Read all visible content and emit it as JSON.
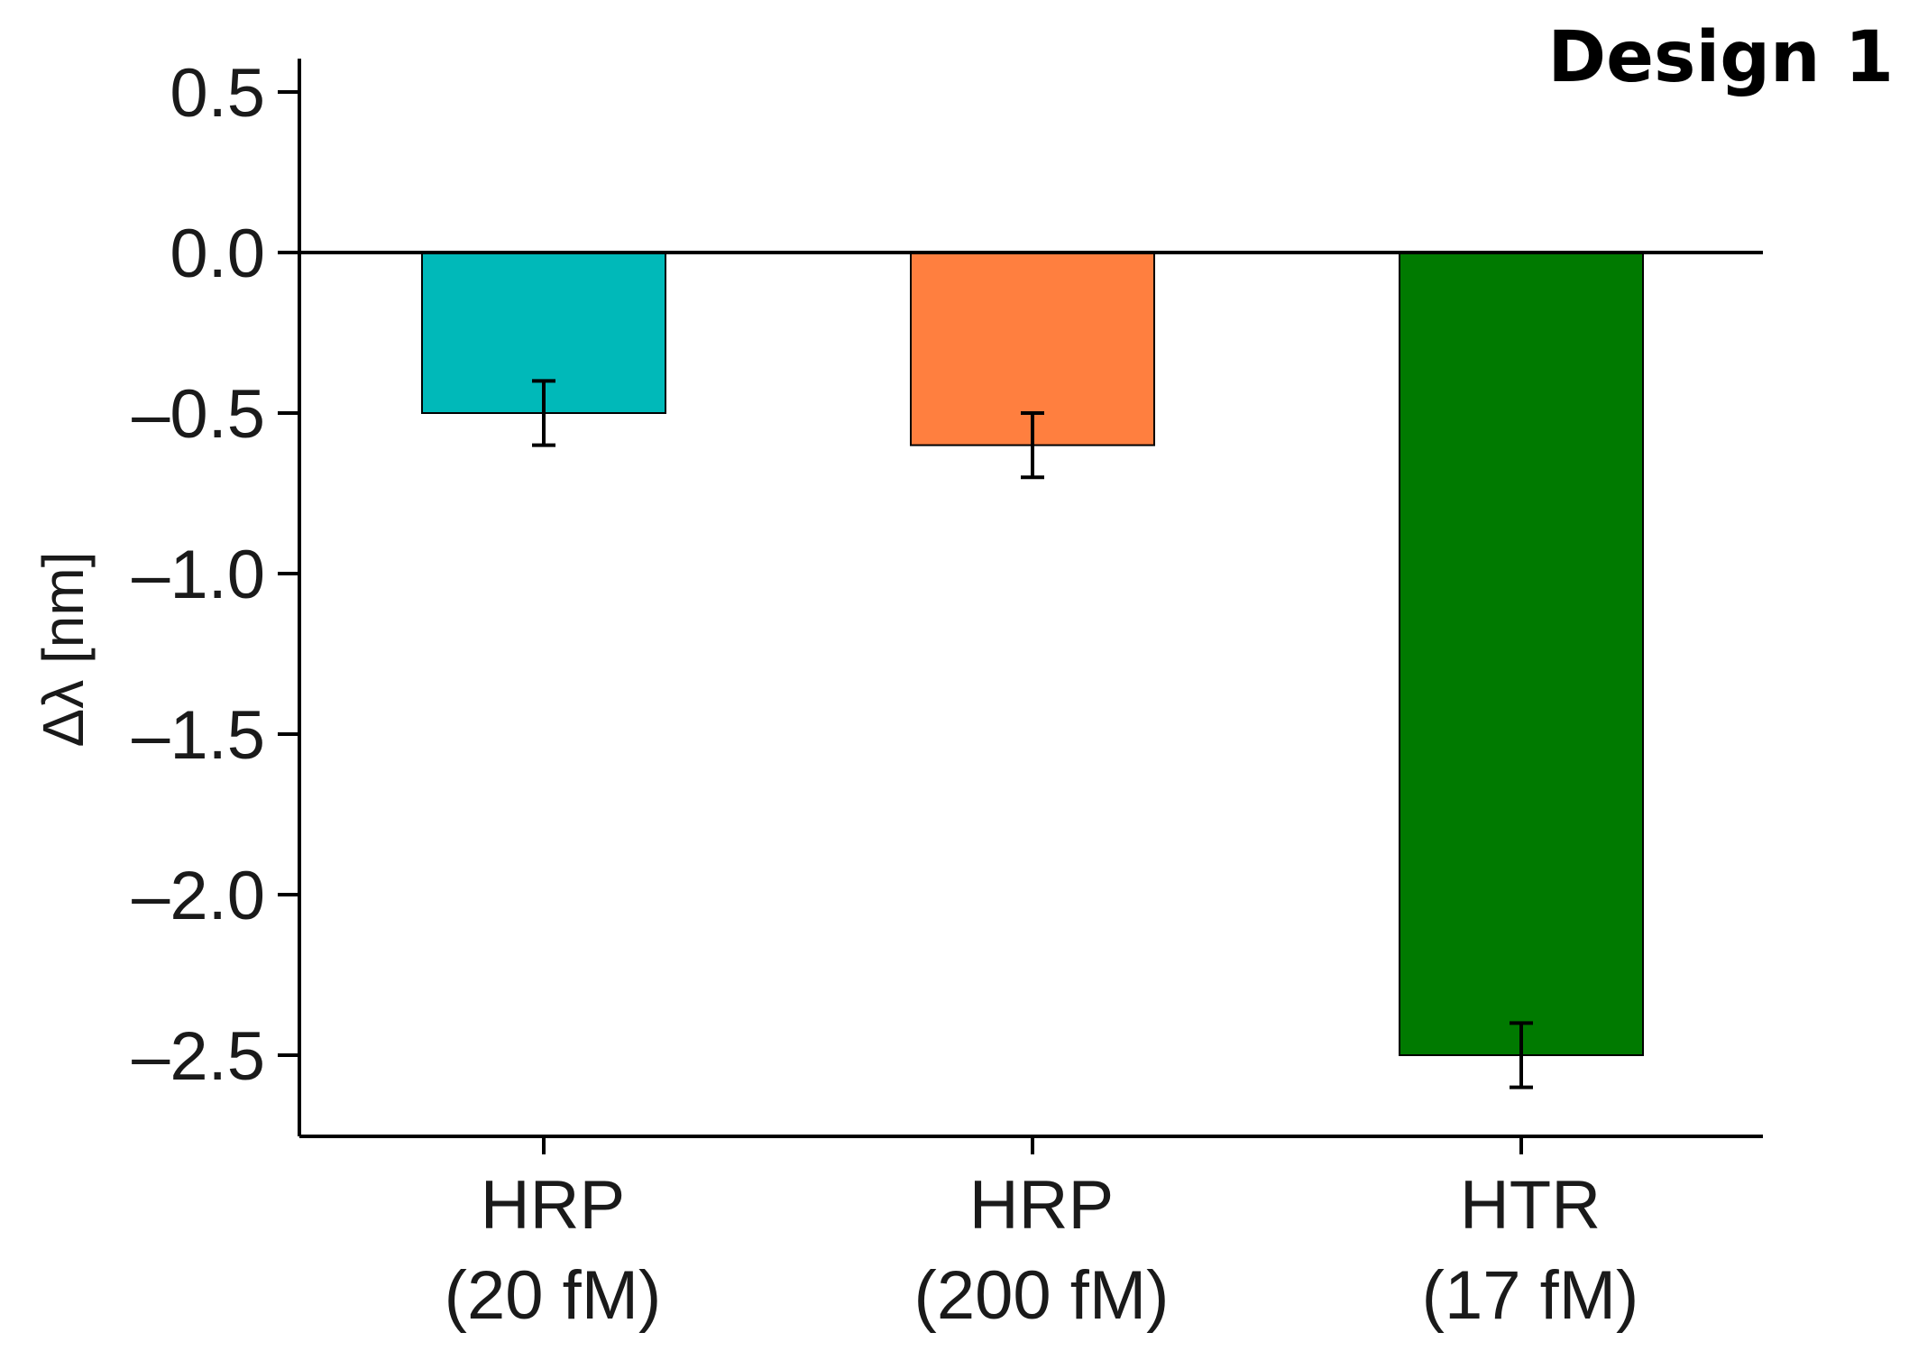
{
  "chart_data": {
    "type": "bar",
    "title": "Design 1",
    "xlabel": "",
    "ylabel": "Δλ [nm]",
    "ylim": [
      -2.75,
      0.6
    ],
    "yticks": [
      0.5,
      0.0,
      -0.5,
      -1.0,
      -1.5,
      -2.0,
      -2.5
    ],
    "ytick_labels": [
      "0.5",
      "0.0",
      "–0.5",
      "–1.0",
      "–1.5",
      "–2.0",
      "–2.5"
    ],
    "categories": [
      {
        "line1": "HRP",
        "line2": "(20 fM)"
      },
      {
        "line1": "HRP",
        "line2": "(200 fM)"
      },
      {
        "line1": "HTR",
        "line2": "(17 fM)"
      }
    ],
    "values": [
      -0.5,
      -0.6,
      -2.5
    ],
    "errors": [
      0.1,
      0.1,
      0.1
    ],
    "colors": [
      "#00B9B9",
      "#FF7F3F",
      "#007A00"
    ],
    "grid": false,
    "legend": "none"
  }
}
